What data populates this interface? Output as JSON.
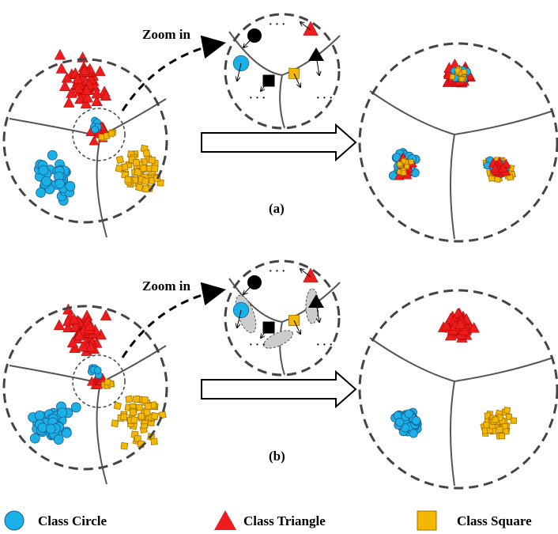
{
  "panels": [
    {
      "zoom_label": "Zoom in",
      "caption": "(a)"
    },
    {
      "zoom_label": "Zoom in",
      "caption": "(b)"
    }
  ],
  "legend": [
    {
      "label": "Class Circle"
    },
    {
      "label": "Class Triangle"
    },
    {
      "label": "Class Square"
    }
  ]
}
